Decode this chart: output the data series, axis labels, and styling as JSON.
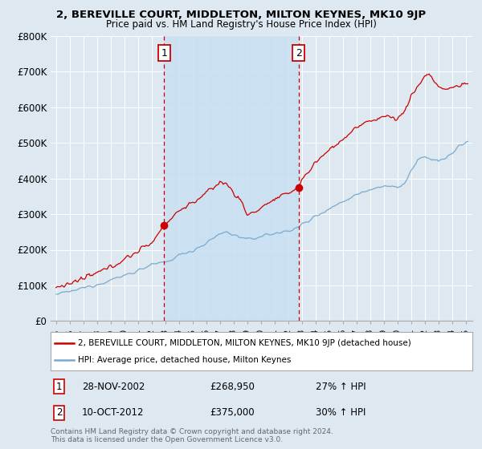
{
  "title": "2, BEREVILLE COURT, MIDDLETON, MILTON KEYNES, MK10 9JP",
  "subtitle": "Price paid vs. HM Land Registry's House Price Index (HPI)",
  "background_color": "#dde8f0",
  "plot_bg_color": "#dde8f0",
  "ylabel_ticks": [
    "£0",
    "£100K",
    "£200K",
    "£300K",
    "£400K",
    "£500K",
    "£600K",
    "£700K",
    "£800K"
  ],
  "ytick_values": [
    0,
    100000,
    200000,
    300000,
    400000,
    500000,
    600000,
    700000,
    800000
  ],
  "ylim": [
    0,
    800000
  ],
  "xlim_start": 1994.6,
  "xlim_end": 2025.5,
  "marker1_x": 2002.91,
  "marker1_y": 268950,
  "marker2_x": 2012.78,
  "marker2_y": 375000,
  "marker1_label": "1",
  "marker2_label": "2",
  "marker1_date": "28-NOV-2002",
  "marker1_price": "£268,950",
  "marker1_hpi": "27% ↑ HPI",
  "marker2_date": "10-OCT-2012",
  "marker2_price": "£375,000",
  "marker2_hpi": "30% ↑ HPI",
  "legend_line1": "2, BEREVILLE COURT, MIDDLETON, MILTON KEYNES, MK10 9JP (detached house)",
  "legend_line2": "HPI: Average price, detached house, Milton Keynes",
  "footer": "Contains HM Land Registry data © Crown copyright and database right 2024.\nThis data is licensed under the Open Government Licence v3.0.",
  "red_color": "#cc0000",
  "blue_color": "#7aabcf",
  "shade_color": "#c8dff0",
  "vline_color": "#cc0000",
  "grid_color": "#ffffff",
  "xticks": [
    1995,
    1996,
    1997,
    1998,
    1999,
    2000,
    2001,
    2002,
    2003,
    2004,
    2005,
    2006,
    2007,
    2008,
    2009,
    2010,
    2011,
    2012,
    2013,
    2014,
    2015,
    2016,
    2017,
    2018,
    2019,
    2020,
    2021,
    2022,
    2023,
    2024,
    2025
  ]
}
